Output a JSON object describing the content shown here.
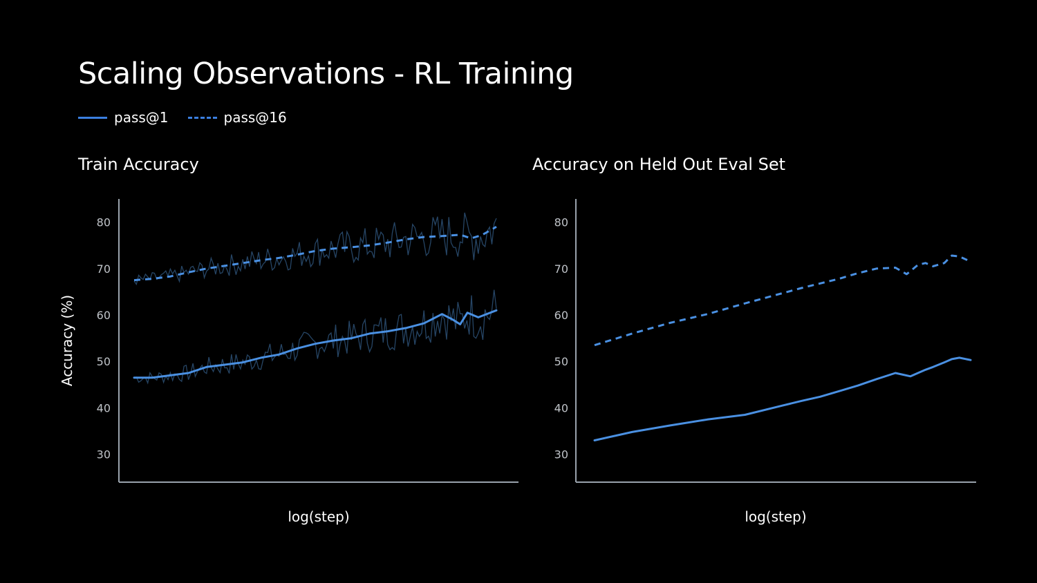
{
  "title": "Scaling Observations - RL Training",
  "legend": [
    {
      "label": "pass@1",
      "style": "solid"
    },
    {
      "label": "pass@16",
      "style": "dashed"
    }
  ],
  "colors": {
    "line": "#4a90e2",
    "raw": "#2a4d70",
    "axis": "#9aa3ad",
    "legend": "#3b7fe0"
  },
  "chart_data": [
    {
      "type": "line",
      "title": "Train Accuracy",
      "xlabel": "log(step)",
      "ylabel": "Accuracy (%)",
      "ylim": [
        24,
        85
      ],
      "yticks": [
        30,
        40,
        50,
        60,
        70,
        80
      ],
      "xlim": [
        0,
        1
      ],
      "series": [
        {
          "name": "pass@1",
          "style": "solid",
          "x": [
            0,
            0.05,
            0.1,
            0.15,
            0.2,
            0.25,
            0.3,
            0.35,
            0.4,
            0.45,
            0.5,
            0.55,
            0.6,
            0.65,
            0.7,
            0.75,
            0.8,
            0.85,
            0.88,
            0.9,
            0.92,
            0.95,
            1.0
          ],
          "y": [
            46.5,
            46.5,
            47,
            47.5,
            48.8,
            49.3,
            49.8,
            50.8,
            51.5,
            52.8,
            53.8,
            54.5,
            55,
            56,
            56.5,
            57.2,
            58.2,
            60.2,
            59,
            58,
            60.5,
            59.5,
            61
          ]
        },
        {
          "name": "pass@16",
          "style": "dashed",
          "x": [
            0,
            0.05,
            0.1,
            0.15,
            0.2,
            0.25,
            0.3,
            0.35,
            0.4,
            0.45,
            0.5,
            0.55,
            0.6,
            0.65,
            0.7,
            0.75,
            0.8,
            0.85,
            0.9,
            0.93,
            0.96,
            1.0
          ],
          "y": [
            67.5,
            67.8,
            68.3,
            69.2,
            70,
            70.6,
            71.2,
            71.8,
            72.3,
            73,
            73.8,
            74.3,
            74.6,
            75,
            75.6,
            76.3,
            76.8,
            77,
            77.3,
            76.5,
            77.2,
            79
          ]
        }
      ]
    },
    {
      "type": "line",
      "title": "Accuracy on Held Out Eval Set",
      "xlabel": "log(step)",
      "ylabel": "",
      "ylim": [
        24,
        85
      ],
      "yticks": [
        30,
        40,
        50,
        60,
        70,
        80
      ],
      "xlim": [
        0,
        1
      ],
      "series": [
        {
          "name": "pass@1",
          "style": "solid",
          "x": [
            0,
            0.1,
            0.2,
            0.3,
            0.4,
            0.5,
            0.55,
            0.6,
            0.65,
            0.7,
            0.75,
            0.8,
            0.84,
            0.86,
            0.88,
            0.9,
            0.93,
            0.95,
            0.97,
            1.0
          ],
          "y": [
            33,
            34.8,
            36.2,
            37.5,
            38.5,
            40.5,
            41.5,
            42.4,
            43.6,
            44.8,
            46.2,
            47.5,
            46.8,
            47.5,
            48.2,
            48.8,
            49.8,
            50.5,
            50.8,
            50.3
          ]
        },
        {
          "name": "pass@16",
          "style": "dashed",
          "x": [
            0,
            0.1,
            0.2,
            0.3,
            0.4,
            0.5,
            0.55,
            0.6,
            0.65,
            0.7,
            0.75,
            0.8,
            0.83,
            0.86,
            0.88,
            0.9,
            0.93,
            0.95,
            0.97,
            1.0
          ],
          "y": [
            53.5,
            56,
            58.3,
            60.2,
            62.5,
            64.7,
            65.8,
            66.8,
            67.8,
            69,
            70,
            70.2,
            68.8,
            70.8,
            71.2,
            70.5,
            71.2,
            72.8,
            72.6,
            71.5
          ]
        }
      ]
    }
  ]
}
